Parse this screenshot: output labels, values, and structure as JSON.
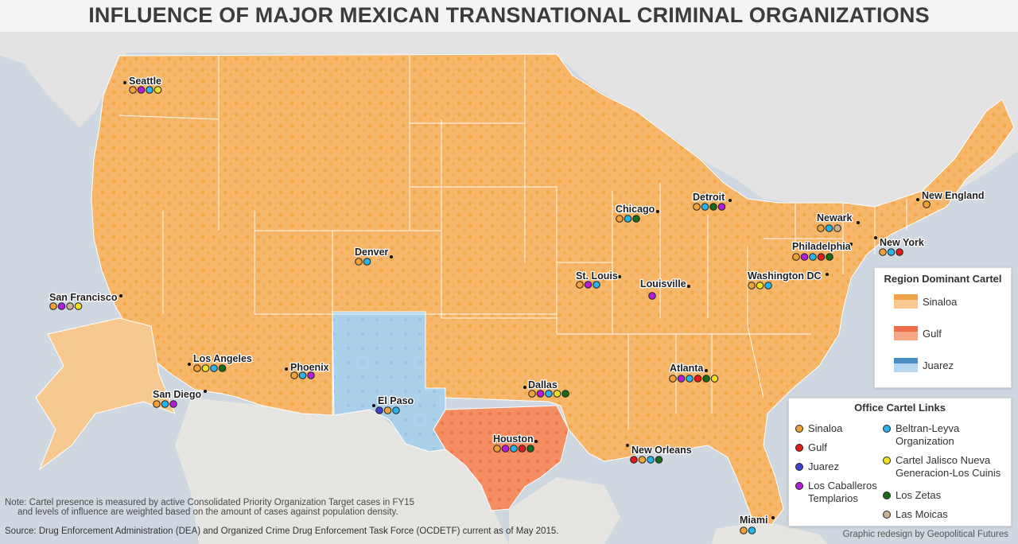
{
  "title": "INFLUENCE OF MAJOR MEXICAN TRANSNATIONAL CRIMINAL ORGANIZATIONS",
  "colors": {
    "sinaloa": "#f0a23a",
    "gulf": "#e31a1c",
    "juarez": "#4040d0",
    "caballeros": "#b020d8",
    "beltran": "#28b4e8",
    "cjng": "#f0e020",
    "zetas": "#1a6a1a",
    "moicas": "#c8b090",
    "region_sinaloa": "#f6b76a",
    "region_gulf": "#f2855c",
    "region_juarez": "#a9cfe9"
  },
  "cities": [
    {
      "id": "seattle",
      "name": "Seattle",
      "cartels": [
        "sinaloa",
        "caballeros",
        "beltran",
        "cjng"
      ]
    },
    {
      "id": "san-francisco",
      "name": "San Francisco",
      "cartels": [
        "sinaloa",
        "caballeros",
        "moicas",
        "cjng"
      ]
    },
    {
      "id": "los-angeles",
      "name": "Los Angeles",
      "cartels": [
        "sinaloa",
        "cjng",
        "beltran",
        "zetas"
      ]
    },
    {
      "id": "san-diego",
      "name": "San Diego",
      "cartels": [
        "sinaloa",
        "beltran",
        "caballeros"
      ]
    },
    {
      "id": "phoenix",
      "name": "Phoenix",
      "cartels": [
        "sinaloa",
        "beltran",
        "caballeros"
      ]
    },
    {
      "id": "denver",
      "name": "Denver",
      "cartels": [
        "sinaloa",
        "beltran"
      ]
    },
    {
      "id": "el-paso",
      "name": "El Paso",
      "cartels": [
        "juarez",
        "sinaloa",
        "beltran"
      ]
    },
    {
      "id": "dallas",
      "name": "Dallas",
      "cartels": [
        "sinaloa",
        "caballeros",
        "beltran",
        "cjng",
        "zetas"
      ]
    },
    {
      "id": "houston",
      "name": "Houston",
      "cartels": [
        "sinaloa",
        "caballeros",
        "beltran",
        "gulf",
        "zetas"
      ]
    },
    {
      "id": "st-louis",
      "name": "St. Louis",
      "cartels": [
        "sinaloa",
        "caballeros",
        "beltran"
      ]
    },
    {
      "id": "chicago",
      "name": "Chicago",
      "cartels": [
        "sinaloa",
        "beltran",
        "zetas"
      ]
    },
    {
      "id": "louisville",
      "name": "Louisville",
      "cartels": [
        "caballeros"
      ]
    },
    {
      "id": "detroit",
      "name": "Detroit",
      "cartels": [
        "sinaloa",
        "beltran",
        "zetas",
        "caballeros"
      ]
    },
    {
      "id": "atlanta",
      "name": "Atlanta",
      "cartels": [
        "sinaloa",
        "caballeros",
        "beltran",
        "gulf",
        "zetas",
        "cjng"
      ]
    },
    {
      "id": "new-orleans",
      "name": "New Orleans",
      "cartels": [
        "gulf",
        "sinaloa",
        "beltran",
        "zetas"
      ]
    },
    {
      "id": "miami",
      "name": "Miami",
      "cartels": [
        "sinaloa",
        "beltran"
      ]
    },
    {
      "id": "washington-dc",
      "name": "Washington DC",
      "cartels": [
        "sinaloa",
        "cjng",
        "beltran"
      ]
    },
    {
      "id": "philadelphia",
      "name": "Philadelphia",
      "cartels": [
        "sinaloa",
        "caballeros",
        "beltran",
        "gulf",
        "zetas"
      ]
    },
    {
      "id": "newark",
      "name": "Newark",
      "cartels": [
        "sinaloa",
        "beltran",
        "moicas"
      ]
    },
    {
      "id": "new-york",
      "name": "New York",
      "cartels": [
        "sinaloa",
        "beltran",
        "gulf"
      ]
    },
    {
      "id": "new-england",
      "name": "New England",
      "cartels": [
        "sinaloa"
      ]
    }
  ],
  "legend_region": {
    "title": "Region Dominant Cartel",
    "items": [
      "Sinaloa",
      "Gulf",
      "Juarez"
    ]
  },
  "legend_links": {
    "title": "Office Cartel Links",
    "left": [
      {
        "key": "sinaloa",
        "label": "Sinaloa"
      },
      {
        "key": "gulf",
        "label": "Gulf"
      },
      {
        "key": "juarez",
        "label": "Juarez"
      },
      {
        "key": "caballeros",
        "label": "Los Caballeros Templarios"
      }
    ],
    "right": [
      {
        "key": "beltran",
        "label": "Beltran-Leyva Organization"
      },
      {
        "key": "cjng",
        "label": "Cartel Jalisco Nueva Generacion-Los Cuinis"
      },
      {
        "key": "zetas",
        "label": "Los Zetas"
      },
      {
        "key": "moicas",
        "label": "Las Moicas"
      }
    ]
  },
  "note_line1": "Note: Cartel presence is measured by active Consolidated Priority Organization Target cases in FY15",
  "note_line2": "and levels of influence are weighted based on the amount of cases against population density.",
  "source": "Source: Drug Enforcement Administration (DEA) and Organized Crime Drug Enforcement Task Force (OCDETF) current as of May 2015.",
  "credit": "Graphic redesign by Geopolitical Futures"
}
